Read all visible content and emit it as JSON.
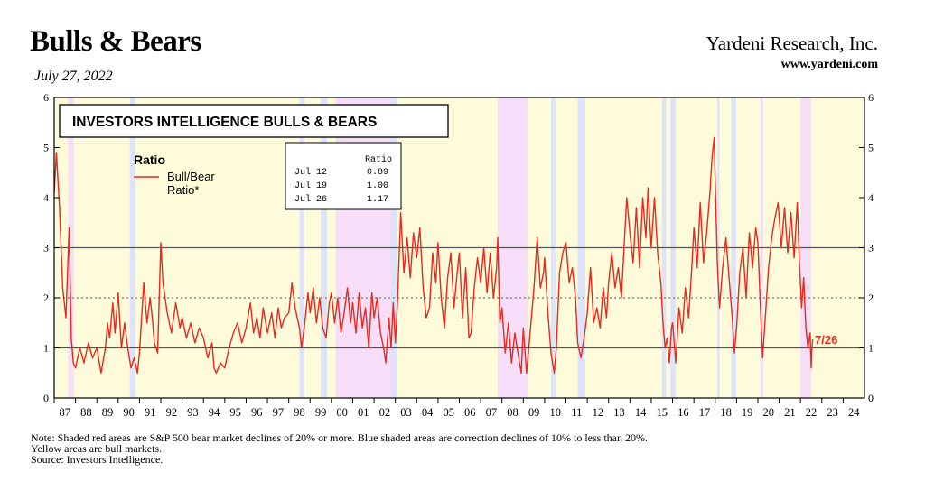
{
  "header": {
    "title": "Bulls & Bears",
    "date": "July 27, 2022",
    "brand": "Yardeni Research, Inc.",
    "url": "www.yardeni.com"
  },
  "notes": [
    "Note: Shaded red areas are S&P 500 bear market declines of 20% or more.  Blue shaded areas are correction declines of 10% to less than 20%.",
    "Yellow areas are bull markets.",
    "Source: Investors Intelligence."
  ],
  "colors": {
    "line": "#e8291c",
    "bull": "#fdfbd9",
    "bear": "#f6ddf8",
    "correction": "#dde3fb",
    "grid": "#555555"
  },
  "chart_data": {
    "type": "line",
    "title": "INVESTORS INTELLIGENCE BULLS & BEARS",
    "legend": {
      "heading": "Ratio",
      "series_label_1": "Bull/Bear",
      "series_label_2": "Ratio*",
      "placement": "top-left"
    },
    "table": {
      "header": "Ratio",
      "rows": [
        {
          "date": "Jul 12",
          "value": "0.89"
        },
        {
          "date": "Jul 19",
          "value": "1.00"
        },
        {
          "date": "Jul 26",
          "value": "1.17"
        }
      ]
    },
    "end_label": "7/26",
    "yticks": [
      "0",
      "1",
      "2",
      "3",
      "4",
      "5",
      "6"
    ],
    "ylim": [
      0,
      6
    ],
    "xlim": [
      1987,
      2025
    ],
    "xticks": [
      "87",
      "88",
      "89",
      "90",
      "91",
      "92",
      "93",
      "94",
      "95",
      "96",
      "97",
      "98",
      "99",
      "00",
      "01",
      "02",
      "03",
      "04",
      "05",
      "06",
      "07",
      "08",
      "09",
      "10",
      "11",
      "12",
      "13",
      "14",
      "15",
      "16",
      "17",
      "18",
      "19",
      "20",
      "21",
      "22",
      "23",
      "24"
    ],
    "reference_lines": [
      1,
      2,
      3
    ],
    "bear_periods": [
      [
        1987.65,
        1987.92
      ],
      [
        2000.2,
        2002.8
      ],
      [
        2007.8,
        2009.2
      ],
      [
        2020.12,
        2020.25
      ],
      [
        2022.0,
        2022.5
      ]
    ],
    "correction_periods": [
      [
        1990.55,
        1990.8
      ],
      [
        1998.5,
        1998.72
      ],
      [
        1999.5,
        1999.8
      ],
      [
        2002.8,
        2003.1
      ],
      [
        2010.3,
        2010.5
      ],
      [
        2011.55,
        2011.9
      ],
      [
        2015.5,
        2015.7
      ],
      [
        2015.9,
        2016.15
      ],
      [
        2018.1,
        2018.2
      ],
      [
        2018.75,
        2018.98
      ]
    ],
    "series": [
      {
        "name": "Bull/Bear Ratio*",
        "points": [
          [
            1987.0,
            4.1
          ],
          [
            1987.1,
            4.9
          ],
          [
            1987.25,
            3.8
          ],
          [
            1987.4,
            2.2
          ],
          [
            1987.55,
            1.6
          ],
          [
            1987.7,
            3.4
          ],
          [
            1987.8,
            1.2
          ],
          [
            1987.9,
            0.7
          ],
          [
            1988.0,
            0.6
          ],
          [
            1988.2,
            1.0
          ],
          [
            1988.4,
            0.7
          ],
          [
            1988.6,
            1.1
          ],
          [
            1988.8,
            0.8
          ],
          [
            1989.0,
            1.0
          ],
          [
            1989.2,
            0.5
          ],
          [
            1989.4,
            1.0
          ],
          [
            1989.5,
            1.5
          ],
          [
            1989.6,
            1.2
          ],
          [
            1989.75,
            1.9
          ],
          [
            1989.85,
            1.3
          ],
          [
            1990.0,
            2.1
          ],
          [
            1990.15,
            1.0
          ],
          [
            1990.3,
            1.5
          ],
          [
            1990.45,
            1.0
          ],
          [
            1990.6,
            0.6
          ],
          [
            1990.75,
            0.8
          ],
          [
            1990.9,
            0.5
          ],
          [
            1991.0,
            0.9
          ],
          [
            1991.2,
            2.3
          ],
          [
            1991.35,
            1.5
          ],
          [
            1991.5,
            2.0
          ],
          [
            1991.6,
            1.6
          ],
          [
            1991.7,
            1.1
          ],
          [
            1991.85,
            0.9
          ],
          [
            1992.0,
            3.1
          ],
          [
            1992.1,
            2.3
          ],
          [
            1992.3,
            1.7
          ],
          [
            1992.5,
            1.3
          ],
          [
            1992.7,
            1.9
          ],
          [
            1992.9,
            1.4
          ],
          [
            1993.0,
            1.6
          ],
          [
            1993.2,
            1.2
          ],
          [
            1993.4,
            1.5
          ],
          [
            1993.6,
            1.1
          ],
          [
            1993.8,
            1.4
          ],
          [
            1994.0,
            1.2
          ],
          [
            1994.2,
            0.8
          ],
          [
            1994.4,
            1.1
          ],
          [
            1994.5,
            0.6
          ],
          [
            1994.6,
            0.5
          ],
          [
            1994.8,
            0.7
          ],
          [
            1995.0,
            0.6
          ],
          [
            1995.2,
            1.0
          ],
          [
            1995.4,
            1.3
          ],
          [
            1995.6,
            1.5
          ],
          [
            1995.8,
            1.1
          ],
          [
            1996.0,
            1.4
          ],
          [
            1996.2,
            1.9
          ],
          [
            1996.35,
            1.3
          ],
          [
            1996.5,
            1.6
          ],
          [
            1996.65,
            1.2
          ],
          [
            1996.8,
            1.8
          ],
          [
            1997.0,
            1.3
          ],
          [
            1997.2,
            1.7
          ],
          [
            1997.35,
            1.2
          ],
          [
            1997.5,
            1.8
          ],
          [
            1997.65,
            1.4
          ],
          [
            1997.8,
            1.6
          ],
          [
            1998.0,
            1.7
          ],
          [
            1998.15,
            2.3
          ],
          [
            1998.3,
            1.8
          ],
          [
            1998.5,
            1.4
          ],
          [
            1998.6,
            1.0
          ],
          [
            1998.75,
            1.5
          ],
          [
            1998.9,
            2.1
          ],
          [
            1999.0,
            1.7
          ],
          [
            1999.15,
            2.2
          ],
          [
            1999.3,
            1.5
          ],
          [
            1999.45,
            2.0
          ],
          [
            1999.6,
            1.4
          ],
          [
            1999.75,
            1.2
          ],
          [
            1999.9,
            1.9
          ],
          [
            2000.0,
            2.1
          ],
          [
            2000.15,
            1.5
          ],
          [
            2000.3,
            2.0
          ],
          [
            2000.45,
            1.3
          ],
          [
            2000.6,
            1.7
          ],
          [
            2000.75,
            2.2
          ],
          [
            2000.9,
            1.5
          ],
          [
            2001.0,
            1.9
          ],
          [
            2001.15,
            1.3
          ],
          [
            2001.3,
            2.1
          ],
          [
            2001.45,
            1.4
          ],
          [
            2001.6,
            1.8
          ],
          [
            2001.75,
            1.0
          ],
          [
            2001.9,
            2.1
          ],
          [
            2002.0,
            1.6
          ],
          [
            2002.15,
            2.0
          ],
          [
            2002.3,
            1.3
          ],
          [
            2002.45,
            1.0
          ],
          [
            2002.55,
            0.7
          ],
          [
            2002.7,
            1.6
          ],
          [
            2002.8,
            1.0
          ],
          [
            2002.9,
            1.9
          ],
          [
            2003.0,
            1.1
          ],
          [
            2003.1,
            1.9
          ],
          [
            2003.25,
            3.7
          ],
          [
            2003.4,
            2.5
          ],
          [
            2003.55,
            3.2
          ],
          [
            2003.7,
            2.4
          ],
          [
            2003.85,
            3.3
          ],
          [
            2004.0,
            2.8
          ],
          [
            2004.15,
            3.4
          ],
          [
            2004.3,
            2.2
          ],
          [
            2004.45,
            1.6
          ],
          [
            2004.6,
            1.8
          ],
          [
            2004.75,
            2.9
          ],
          [
            2004.9,
            2.3
          ],
          [
            2005.0,
            3.1
          ],
          [
            2005.15,
            2.0
          ],
          [
            2005.3,
            1.4
          ],
          [
            2005.45,
            2.4
          ],
          [
            2005.6,
            2.9
          ],
          [
            2005.75,
            1.8
          ],
          [
            2005.9,
            2.5
          ],
          [
            2006.0,
            2.9
          ],
          [
            2006.15,
            1.6
          ],
          [
            2006.3,
            2.6
          ],
          [
            2006.45,
            1.2
          ],
          [
            2006.55,
            1.3
          ],
          [
            2006.7,
            2.2
          ],
          [
            2006.85,
            2.8
          ],
          [
            2007.0,
            2.3
          ],
          [
            2007.15,
            3.0
          ],
          [
            2007.3,
            2.1
          ],
          [
            2007.45,
            2.9
          ],
          [
            2007.6,
            2.0
          ],
          [
            2007.75,
            2.6
          ],
          [
            2007.8,
            3.2
          ],
          [
            2007.9,
            1.5
          ],
          [
            2008.0,
            1.8
          ],
          [
            2008.15,
            0.9
          ],
          [
            2008.3,
            1.5
          ],
          [
            2008.45,
            0.7
          ],
          [
            2008.6,
            1.3
          ],
          [
            2008.75,
            0.9
          ],
          [
            2008.9,
            0.5
          ],
          [
            2009.0,
            1.4
          ],
          [
            2009.15,
            0.5
          ],
          [
            2009.3,
            1.2
          ],
          [
            2009.5,
            2.2
          ],
          [
            2009.65,
            3.2
          ],
          [
            2009.8,
            2.2
          ],
          [
            2009.95,
            2.5
          ],
          [
            2010.0,
            2.8
          ],
          [
            2010.15,
            1.7
          ],
          [
            2010.3,
            0.9
          ],
          [
            2010.45,
            0.5
          ],
          [
            2010.55,
            1.0
          ],
          [
            2010.7,
            2.5
          ],
          [
            2010.85,
            2.9
          ],
          [
            2011.0,
            3.1
          ],
          [
            2011.15,
            2.3
          ],
          [
            2011.3,
            2.6
          ],
          [
            2011.45,
            2.0
          ],
          [
            2011.55,
            1.1
          ],
          [
            2011.7,
            0.8
          ],
          [
            2011.85,
            1.2
          ],
          [
            2012.0,
            1.7
          ],
          [
            2012.15,
            2.6
          ],
          [
            2012.3,
            1.5
          ],
          [
            2012.45,
            1.8
          ],
          [
            2012.6,
            1.4
          ],
          [
            2012.75,
            2.2
          ],
          [
            2012.9,
            1.6
          ],
          [
            2013.0,
            2.3
          ],
          [
            2013.15,
            2.9
          ],
          [
            2013.3,
            2.2
          ],
          [
            2013.45,
            2.6
          ],
          [
            2013.6,
            2.0
          ],
          [
            2013.75,
            3.2
          ],
          [
            2013.85,
            4.0
          ],
          [
            2014.0,
            3.3
          ],
          [
            2014.15,
            2.7
          ],
          [
            2014.3,
            3.8
          ],
          [
            2014.45,
            2.6
          ],
          [
            2014.6,
            4.0
          ],
          [
            2014.75,
            3.2
          ],
          [
            2014.85,
            4.2
          ],
          [
            2015.0,
            3.0
          ],
          [
            2015.15,
            4.0
          ],
          [
            2015.3,
            2.9
          ],
          [
            2015.45,
            2.3
          ],
          [
            2015.55,
            1.5
          ],
          [
            2015.65,
            1.0
          ],
          [
            2015.75,
            1.2
          ],
          [
            2015.85,
            0.7
          ],
          [
            2015.95,
            1.4
          ],
          [
            2016.0,
            1.5
          ],
          [
            2016.15,
            0.7
          ],
          [
            2016.3,
            1.8
          ],
          [
            2016.45,
            1.3
          ],
          [
            2016.6,
            2.2
          ],
          [
            2016.75,
            1.6
          ],
          [
            2016.9,
            2.6
          ],
          [
            2017.0,
            3.4
          ],
          [
            2017.15,
            2.6
          ],
          [
            2017.3,
            3.9
          ],
          [
            2017.45,
            2.7
          ],
          [
            2017.6,
            3.3
          ],
          [
            2017.75,
            4.1
          ],
          [
            2017.85,
            4.8
          ],
          [
            2017.95,
            5.2
          ],
          [
            2018.0,
            4.3
          ],
          [
            2018.1,
            2.7
          ],
          [
            2018.2,
            1.8
          ],
          [
            2018.35,
            2.6
          ],
          [
            2018.5,
            3.2
          ],
          [
            2018.65,
            2.4
          ],
          [
            2018.8,
            1.6
          ],
          [
            2018.9,
            0.9
          ],
          [
            2019.0,
            1.4
          ],
          [
            2019.15,
            2.5
          ],
          [
            2019.3,
            3.0
          ],
          [
            2019.45,
            2.0
          ],
          [
            2019.6,
            3.3
          ],
          [
            2019.75,
            2.6
          ],
          [
            2019.9,
            3.4
          ],
          [
            2020.0,
            3.1
          ],
          [
            2020.12,
            1.8
          ],
          [
            2020.22,
            0.8
          ],
          [
            2020.35,
            1.6
          ],
          [
            2020.5,
            2.6
          ],
          [
            2020.65,
            3.2
          ],
          [
            2020.8,
            3.6
          ],
          [
            2020.95,
            3.9
          ],
          [
            2021.1,
            3.0
          ],
          [
            2021.25,
            3.8
          ],
          [
            2021.4,
            2.9
          ],
          [
            2021.55,
            3.7
          ],
          [
            2021.7,
            2.8
          ],
          [
            2021.85,
            3.9
          ],
          [
            2021.95,
            2.7
          ],
          [
            2022.05,
            1.8
          ],
          [
            2022.15,
            2.4
          ],
          [
            2022.25,
            1.4
          ],
          [
            2022.35,
            1.0
          ],
          [
            2022.45,
            1.3
          ],
          [
            2022.5,
            0.6
          ],
          [
            2022.52,
            0.89
          ],
          [
            2022.54,
            1.0
          ],
          [
            2022.57,
            1.17
          ]
        ]
      }
    ]
  }
}
